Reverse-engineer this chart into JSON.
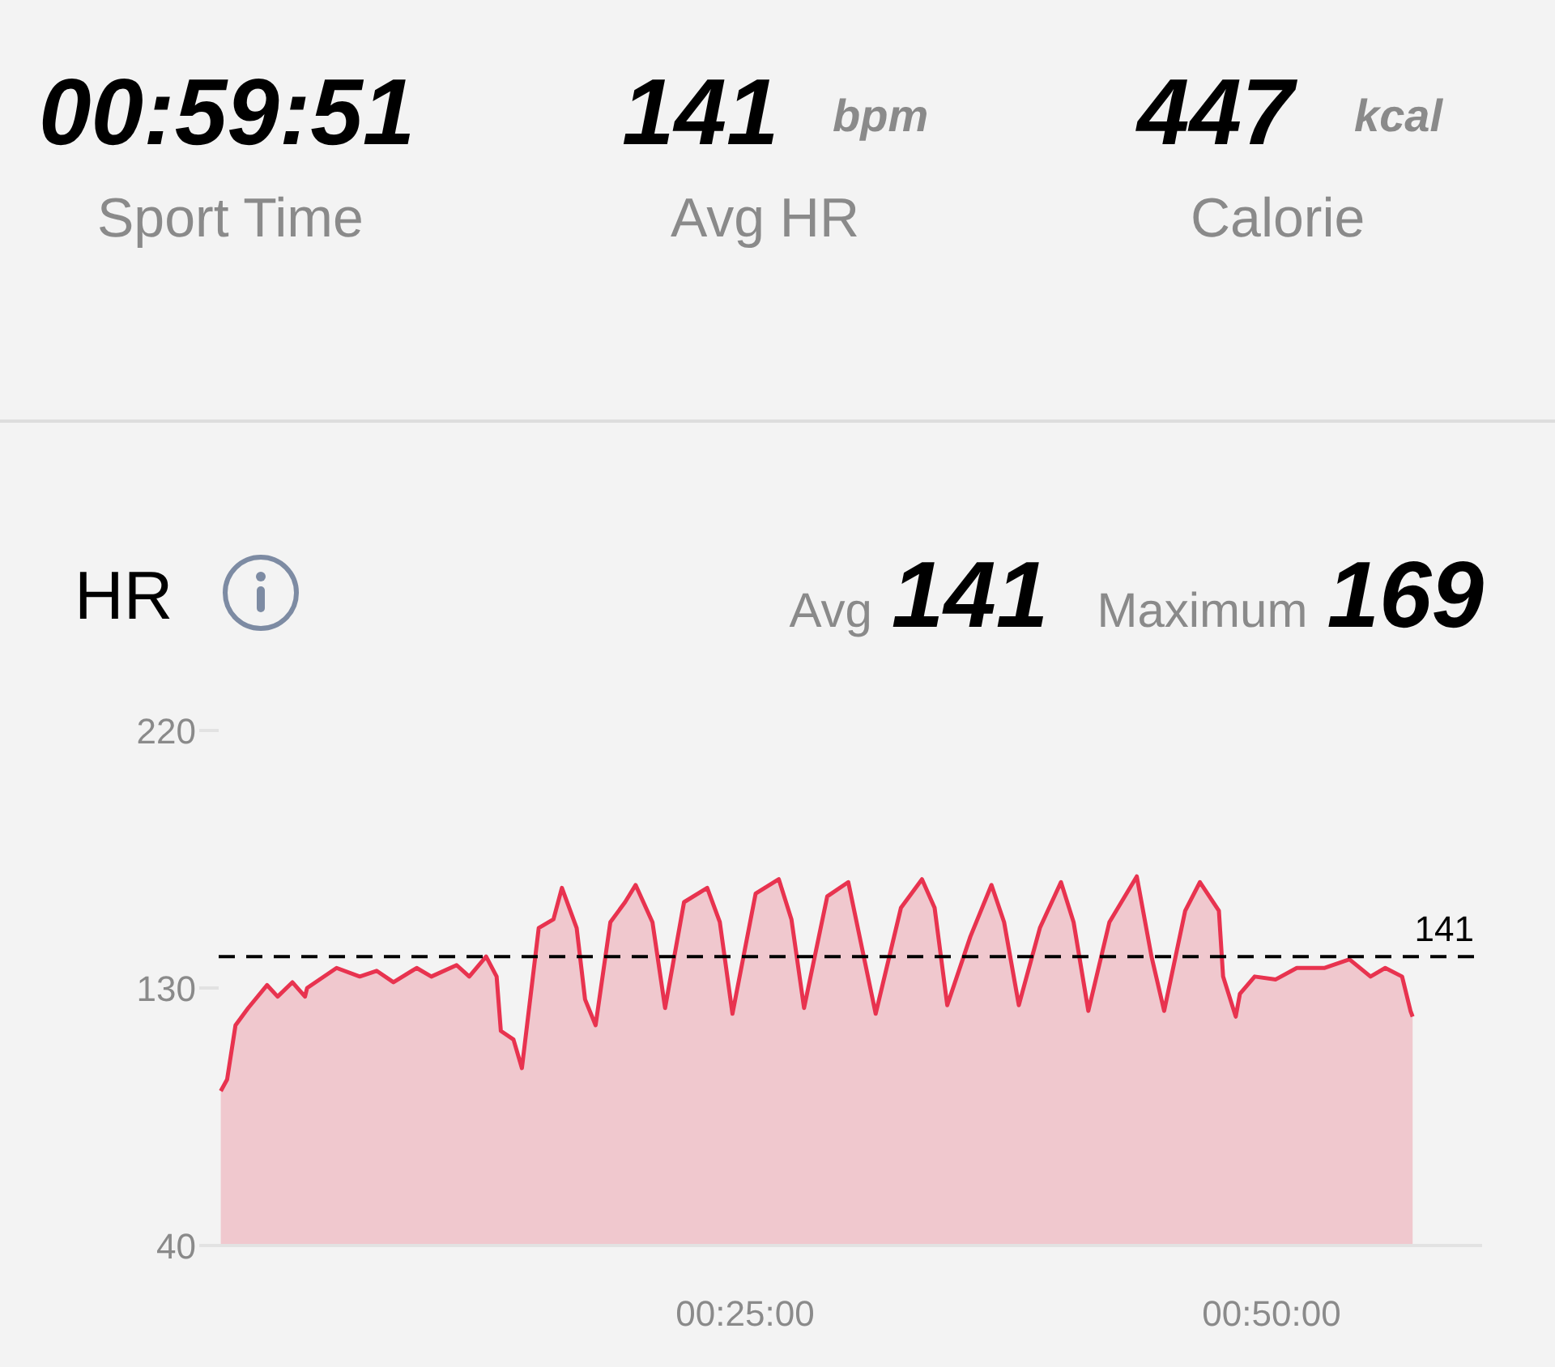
{
  "chart_data": {
    "type": "area",
    "title": "HR",
    "annotations": [
      "00:59:51",
      "Sport Time",
      "141",
      "bpm",
      "Avg HR",
      "447",
      "kcal",
      "Calorie",
      "Avg",
      "141",
      "Maximum",
      "169"
    ],
    "x": [
      0.1,
      0.4,
      0.8,
      1.4,
      2.3,
      2.8,
      3.5,
      4.1,
      4.2,
      5.6,
      6.7,
      7.5,
      8.3,
      9.4,
      10.1,
      11.3,
      11.9,
      12.7,
      13.2,
      13.4,
      14.0,
      14.4,
      15.2,
      15.9,
      16.3,
      17.0,
      17.4,
      17.9,
      18.6,
      19.3,
      19.8,
      20.6,
      21.2,
      22.1,
      23.2,
      23.8,
      24.4,
      25.5,
      26.6,
      27.2,
      27.8,
      28.9,
      29.9,
      31.2,
      32.4,
      33.4,
      34.0,
      34.6,
      35.7,
      36.7,
      37.3,
      38.0,
      39.0,
      40.0,
      40.6,
      41.3,
      42.3,
      43.6,
      44.3,
      44.9,
      45.9,
      46.6,
      47.5,
      47.7,
      48.3,
      48.5,
      49.2,
      50.2,
      51.2,
      52.5,
      53.7,
      54.7,
      55.4,
      56.2,
      56.6,
      56.7
    ],
    "series": [
      {
        "color": "#e8334f",
        "values": [
          94,
          98,
          117,
          123,
          131,
          127,
          132,
          127,
          130,
          137,
          134,
          136,
          132,
          137,
          134,
          138,
          134,
          141,
          134,
          115,
          112,
          102,
          151,
          154,
          165,
          151,
          126,
          117,
          153,
          160,
          166,
          153,
          123,
          160,
          165,
          153,
          121,
          163,
          168,
          154,
          123,
          162,
          167,
          121,
          158,
          168,
          158,
          124,
          148,
          166,
          153,
          124,
          151,
          167,
          153,
          122,
          153,
          169,
          141,
          122,
          157,
          167,
          157,
          134,
          120,
          128,
          134,
          133,
          137,
          137,
          140,
          134,
          137,
          134,
          122,
          120
        ]
      }
    ],
    "xlim": [
      0,
      60
    ],
    "xticks": [
      {
        "value": 25,
        "label": "00:25:00"
      },
      {
        "value": 50,
        "label": "00:50:00"
      }
    ],
    "ylim": [
      40,
      220
    ],
    "yticks": [
      40,
      130,
      220
    ],
    "ref_lines": [
      {
        "axis": "y",
        "value": 141,
        "label": "141",
        "color": "#000000",
        "line_style": "dashed"
      }
    ],
    "marker": "none",
    "line_style": "solid"
  }
}
